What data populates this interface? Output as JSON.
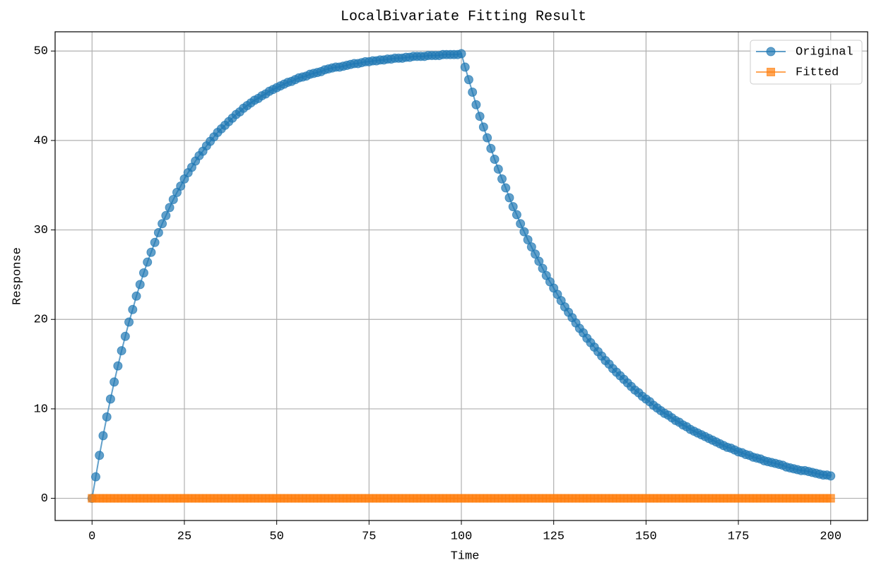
{
  "chart_data": {
    "type": "line",
    "title": "LocalBivariate Fitting Result",
    "x_label": "Time",
    "y_label": "Response",
    "x": [
      0,
      1,
      2,
      3,
      4,
      5,
      6,
      7,
      8,
      9,
      10,
      11,
      12,
      13,
      14,
      15,
      16,
      17,
      18,
      19,
      20,
      21,
      22,
      23,
      24,
      25,
      26,
      27,
      28,
      29,
      30,
      31,
      32,
      33,
      34,
      35,
      36,
      37,
      38,
      39,
      40,
      41,
      42,
      43,
      44,
      45,
      46,
      47,
      48,
      49,
      50,
      51,
      52,
      53,
      54,
      55,
      56,
      57,
      58,
      59,
      60,
      61,
      62,
      63,
      64,
      65,
      66,
      67,
      68,
      69,
      70,
      71,
      72,
      73,
      74,
      75,
      76,
      77,
      78,
      79,
      80,
      81,
      82,
      83,
      84,
      85,
      86,
      87,
      88,
      89,
      90,
      91,
      92,
      93,
      94,
      95,
      96,
      97,
      98,
      99,
      100,
      101,
      102,
      103,
      104,
      105,
      106,
      107,
      108,
      109,
      110,
      111,
      112,
      113,
      114,
      115,
      116,
      117,
      118,
      119,
      120,
      121,
      122,
      123,
      124,
      125,
      126,
      127,
      128,
      129,
      130,
      131,
      132,
      133,
      134,
      135,
      136,
      137,
      138,
      139,
      140,
      141,
      142,
      143,
      144,
      145,
      146,
      147,
      148,
      149,
      150,
      151,
      152,
      153,
      154,
      155,
      156,
      157,
      158,
      159,
      160,
      161,
      162,
      163,
      164,
      165,
      166,
      167,
      168,
      169,
      170,
      171,
      172,
      173,
      174,
      175,
      176,
      177,
      178,
      179,
      180,
      181,
      182,
      183,
      184,
      185,
      186,
      187,
      188,
      189,
      190,
      191,
      192,
      193,
      194,
      195,
      196,
      197,
      198,
      199,
      200
    ],
    "series": [
      {
        "name": "Original",
        "color": "#1f77b4",
        "marker": "circle",
        "values": [
          0,
          2.4,
          4.8,
          7.0,
          9.1,
          11.1,
          13.0,
          14.8,
          16.5,
          18.1,
          19.7,
          21.1,
          22.6,
          23.9,
          25.2,
          26.4,
          27.5,
          28.6,
          29.7,
          30.7,
          31.6,
          32.5,
          33.4,
          34.2,
          34.9,
          35.7,
          36.4,
          37.0,
          37.7,
          38.3,
          38.8,
          39.4,
          39.9,
          40.4,
          40.9,
          41.3,
          41.7,
          42.1,
          42.5,
          42.9,
          43.2,
          43.6,
          43.9,
          44.2,
          44.5,
          44.7,
          45.0,
          45.2,
          45.5,
          45.7,
          45.9,
          46.1,
          46.3,
          46.5,
          46.6,
          46.8,
          47.0,
          47.1,
          47.2,
          47.4,
          47.5,
          47.6,
          47.7,
          47.9,
          48.0,
          48.1,
          48.2,
          48.2,
          48.3,
          48.4,
          48.5,
          48.6,
          48.6,
          48.7,
          48.8,
          48.8,
          48.9,
          48.9,
          49.0,
          49.0,
          49.1,
          49.1,
          49.2,
          49.2,
          49.2,
          49.3,
          49.3,
          49.4,
          49.4,
          49.4,
          49.4,
          49.5,
          49.5,
          49.5,
          49.5,
          49.6,
          49.6,
          49.6,
          49.6,
          49.6,
          49.7,
          48.2,
          46.8,
          45.4,
          44.0,
          42.7,
          41.5,
          40.3,
          39.1,
          37.9,
          36.8,
          35.7,
          34.7,
          33.6,
          32.6,
          31.7,
          30.7,
          29.8,
          28.9,
          28.1,
          27.3,
          26.5,
          25.7,
          24.9,
          24.2,
          23.5,
          22.8,
          22.1,
          21.4,
          20.8,
          20.2,
          19.6,
          19.0,
          18.5,
          17.9,
          17.4,
          16.9,
          16.4,
          15.9,
          15.4,
          15.0,
          14.5,
          14.1,
          13.7,
          13.3,
          12.9,
          12.5,
          12.1,
          11.8,
          11.4,
          11.1,
          10.8,
          10.4,
          10.1,
          9.8,
          9.5,
          9.3,
          9.0,
          8.7,
          8.5,
          8.2,
          8.0,
          7.7,
          7.5,
          7.3,
          7.1,
          6.9,
          6.7,
          6.5,
          6.3,
          6.1,
          5.9,
          5.7,
          5.6,
          5.4,
          5.2,
          5.1,
          4.9,
          4.8,
          4.6,
          4.5,
          4.4,
          4.2,
          4.1,
          4.0,
          3.9,
          3.8,
          3.7,
          3.5,
          3.4,
          3.3,
          3.2,
          3.1,
          3.1,
          3.0,
          2.9,
          2.8,
          2.7,
          2.6,
          2.6,
          2.5
        ]
      },
      {
        "name": "Fitted",
        "color": "#ff7f0e",
        "marker": "square",
        "values": [
          0,
          0,
          0,
          0,
          0,
          0,
          0,
          0,
          0,
          0,
          0,
          0,
          0,
          0,
          0,
          0,
          0,
          0,
          0,
          0,
          0,
          0,
          0,
          0,
          0,
          0,
          0,
          0,
          0,
          0,
          0,
          0,
          0,
          0,
          0,
          0,
          0,
          0,
          0,
          0,
          0,
          0,
          0,
          0,
          0,
          0,
          0,
          0,
          0,
          0,
          0,
          0,
          0,
          0,
          0,
          0,
          0,
          0,
          0,
          0,
          0,
          0,
          0,
          0,
          0,
          0,
          0,
          0,
          0,
          0,
          0,
          0,
          0,
          0,
          0,
          0,
          0,
          0,
          0,
          0,
          0,
          0,
          0,
          0,
          0,
          0,
          0,
          0,
          0,
          0,
          0,
          0,
          0,
          0,
          0,
          0,
          0,
          0,
          0,
          0,
          0,
          0,
          0,
          0,
          0,
          0,
          0,
          0,
          0,
          0,
          0,
          0,
          0,
          0,
          0,
          0,
          0,
          0,
          0,
          0,
          0,
          0,
          0,
          0,
          0,
          0,
          0,
          0,
          0,
          0,
          0,
          0,
          0,
          0,
          0,
          0,
          0,
          0,
          0,
          0,
          0,
          0,
          0,
          0,
          0,
          0,
          0,
          0,
          0,
          0,
          0,
          0,
          0,
          0,
          0,
          0,
          0,
          0,
          0,
          0,
          0,
          0,
          0,
          0,
          0,
          0,
          0,
          0,
          0,
          0,
          0,
          0,
          0,
          0,
          0,
          0,
          0,
          0,
          0,
          0,
          0,
          0,
          0,
          0,
          0,
          0,
          0,
          0,
          0,
          0,
          0,
          0,
          0,
          0,
          0,
          0,
          0,
          0,
          0,
          0,
          0
        ]
      }
    ],
    "xlim": [
      -10,
      210
    ],
    "xticks": [
      0,
      25,
      50,
      75,
      100,
      125,
      150,
      175,
      200
    ],
    "ylim": [
      -2.48,
      52.15
    ],
    "yticks": [
      0,
      10,
      20,
      30,
      40,
      50
    ],
    "grid": true,
    "legend": "upper right"
  }
}
